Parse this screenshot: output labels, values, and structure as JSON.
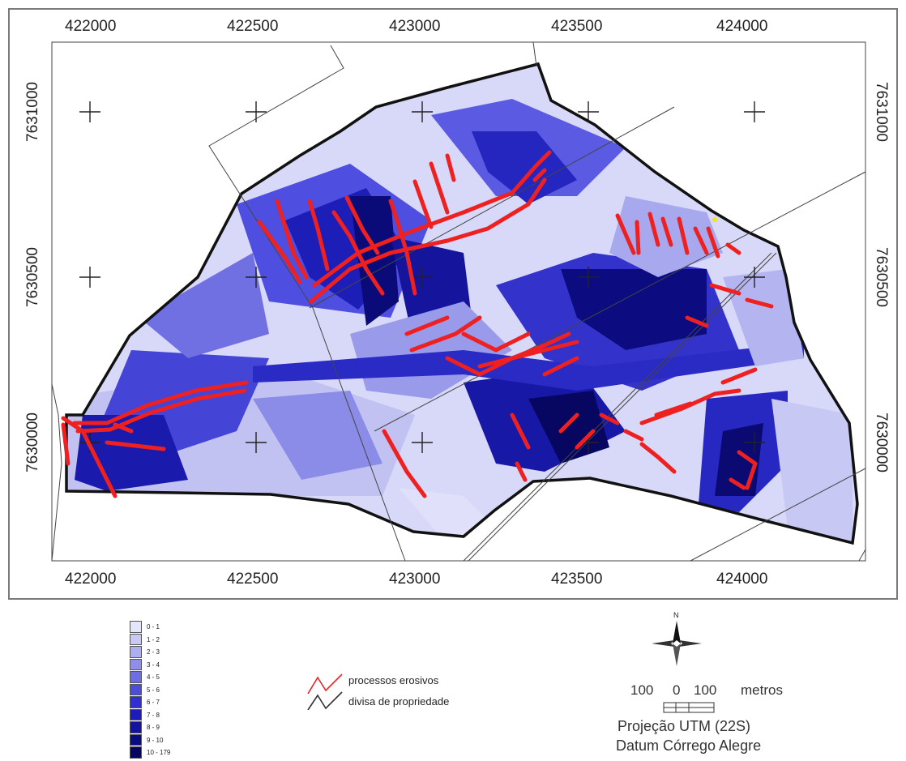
{
  "map": {
    "x_ticks_top": [
      "422000",
      "422500",
      "423000",
      "423500",
      "424000"
    ],
    "x_ticks_bottom": [
      "422000",
      "422500",
      "423000",
      "423500",
      "424000"
    ],
    "y_ticks_left": [
      "7631000",
      "7630500",
      "7630000"
    ],
    "y_ticks_right": [
      "7631000",
      "7630500",
      "7630000"
    ]
  },
  "legend": {
    "classes": [
      {
        "label": "0 - 1",
        "color": "#e4e4fb"
      },
      {
        "label": "1 - 2",
        "color": "#c9c9f5"
      },
      {
        "label": "2 - 3",
        "color": "#adadf0"
      },
      {
        "label": "3 - 4",
        "color": "#8f8fea"
      },
      {
        "label": "4 - 5",
        "color": "#6e6ee4"
      },
      {
        "label": "5 - 6",
        "color": "#4d4ddc"
      },
      {
        "label": "6 - 7",
        "color": "#2f2fd2"
      },
      {
        "label": "7 - 8",
        "color": "#1c1cbd"
      },
      {
        "label": "8 - 9",
        "color": "#1313a0"
      },
      {
        "label": "9 - 10",
        "color": "#0c0c82"
      },
      {
        "label": "10 - 179",
        "color": "#060662"
      }
    ],
    "erosion_label": "processos erosivos",
    "erosion_color": "#ee2222",
    "property_label": "divisa de propriedade",
    "property_color": "#333333"
  },
  "info": {
    "north": "N",
    "scale_left": "100",
    "scale_zero": "0",
    "scale_right": "100",
    "scale_unit": "metros",
    "projection": "Projeção UTM (22S)",
    "datum": "Datum Córrego Alegre"
  }
}
